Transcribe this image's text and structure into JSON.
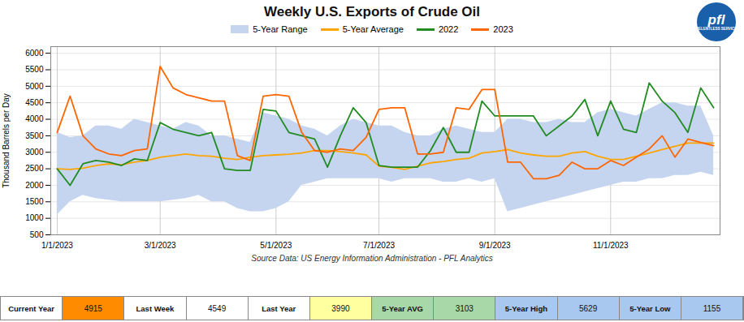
{
  "chart_data": {
    "type": "line",
    "title": "Weekly U.S. Exports of Crude Oil",
    "ylabel": "Thousand Barrels per Day",
    "source": "Source Data: US Energy Information Administration - PFL Analytics",
    "annotations": [
      "pfl",
      "RELENTLESS SERVICE"
    ],
    "ylim": [
      500,
      6200
    ],
    "yticks": [
      500,
      1000,
      1500,
      2000,
      2500,
      3000,
      3500,
      4000,
      4500,
      5000,
      5500,
      6000
    ],
    "grid": true,
    "legend": "top",
    "categories": [
      "1/1/2023",
      null,
      null,
      null,
      null,
      null,
      null,
      null,
      "3/1/2023",
      null,
      null,
      null,
      null,
      null,
      null,
      null,
      null,
      "5/1/2023",
      null,
      null,
      null,
      null,
      null,
      null,
      null,
      "7/1/2023",
      null,
      null,
      null,
      null,
      null,
      null,
      null,
      null,
      "9/1/2023",
      null,
      null,
      null,
      null,
      null,
      null,
      null,
      null,
      "11/1/2023",
      null,
      null,
      null,
      null,
      null,
      null,
      null,
      null
    ],
    "series": [
      {
        "name": "5-Year Range",
        "type": "area",
        "color": "#c5d5f0",
        "low": [
          1100,
          1500,
          1700,
          1600,
          1550,
          1500,
          1500,
          1500,
          1500,
          1550,
          1600,
          1700,
          1500,
          1500,
          1300,
          1200,
          1200,
          1300,
          1500,
          2000,
          2100,
          2200,
          2200,
          2200,
          2200,
          2200,
          2100,
          2200,
          2200,
          2200,
          2100,
          2100,
          2200,
          2100,
          2200,
          1200,
          1300,
          1400,
          1500,
          1600,
          1700,
          1800,
          1900,
          2000,
          2100,
          2100,
          2200,
          2200,
          2300,
          2300,
          2400,
          2300
        ],
        "high": [
          3600,
          3450,
          3500,
          3800,
          3800,
          3700,
          4000,
          3900,
          3800,
          3700,
          3900,
          3800,
          3500,
          3500,
          3400,
          3300,
          4200,
          4100,
          4000,
          3800,
          3700,
          3500,
          3800,
          4000,
          3900,
          3800,
          3800,
          3600,
          3500,
          3500,
          3700,
          3800,
          3700,
          3600,
          3600,
          4000,
          4000,
          3900,
          3900,
          4000,
          3900,
          3900,
          4200,
          4300,
          4200,
          4100,
          4300,
          4500,
          4500,
          4400,
          4400,
          3500
        ]
      },
      {
        "name": "5-Year Average",
        "type": "line",
        "color": "#ffa500",
        "values": [
          2500,
          2480,
          2520,
          2600,
          2650,
          2620,
          2700,
          2750,
          2850,
          2900,
          2950,
          2900,
          2880,
          2820,
          2780,
          2850,
          2900,
          2920,
          2940,
          2980,
          3050,
          3050,
          3020,
          2980,
          2920,
          2580,
          2540,
          2480,
          2580,
          2680,
          2720,
          2780,
          2820,
          2980,
          3020,
          3080,
          2980,
          2920,
          2880,
          2880,
          2980,
          3020,
          2880,
          2780,
          2780,
          2880,
          2980,
          3080,
          3180,
          3280,
          3280,
          3280
        ]
      },
      {
        "name": "2022",
        "type": "line",
        "color": "#228b22",
        "values": [
          2500,
          2000,
          2650,
          2750,
          2700,
          2600,
          2800,
          2750,
          3900,
          3700,
          3600,
          3500,
          3600,
          2500,
          2450,
          2450,
          4300,
          4250,
          3600,
          3500,
          3400,
          2550,
          3500,
          4350,
          3900,
          2600,
          2550,
          2550,
          2550,
          3050,
          3750,
          3000,
          3000,
          4550,
          4100,
          4100,
          4100,
          4100,
          3500,
          3800,
          4100,
          4600,
          3500,
          4550,
          3700,
          3600,
          5100,
          4550,
          4200,
          3600,
          4950,
          4350
        ]
      },
      {
        "name": "2023",
        "type": "line",
        "color": "#ff6600",
        "values": [
          3600,
          4700,
          3500,
          3100,
          2950,
          2900,
          3050,
          3100,
          5600,
          4950,
          4750,
          4650,
          4550,
          4550,
          2900,
          2750,
          4700,
          4750,
          4700,
          3600,
          3050,
          3000,
          3100,
          3050,
          3450,
          4300,
          4350,
          4350,
          2950,
          2950,
          3000,
          4350,
          4300,
          4900,
          4900,
          2700,
          2700,
          2200,
          2200,
          2300,
          2700,
          2500,
          2500,
          2750,
          2600,
          2850,
          3100,
          3500,
          2850,
          3400,
          3300,
          3200
        ]
      }
    ],
    "footer_items": [
      {
        "label": "Current Year",
        "value": 4915,
        "label_color": "#ffffff",
        "value_color": "#ff8c00"
      },
      {
        "label": "Last Week",
        "value": 4549,
        "label_color": "#ffffff",
        "value_color": "#ffffff"
      },
      {
        "label": "Last Year",
        "value": 3990,
        "label_color": "#ffffff",
        "value_color": "#ffffa0"
      },
      {
        "label": "5-Year AVG",
        "value": 3103,
        "label_color": "#a8d8a8",
        "value_color": "#a8d8a8"
      },
      {
        "label": "5-Year High",
        "value": 5629,
        "label_color": "#a8c8f0",
        "value_color": "#a8c8f0"
      },
      {
        "label": "5-Year Low",
        "value": 1155,
        "label_color": "#a8c8f0",
        "value_color": "#a8c8f0"
      }
    ]
  }
}
